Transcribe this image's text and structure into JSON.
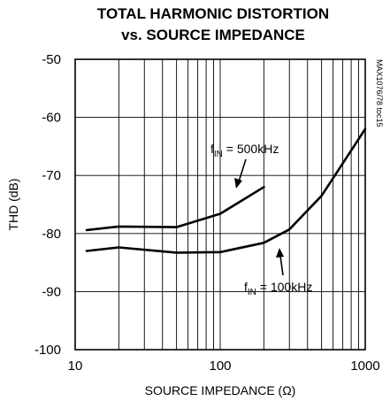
{
  "chart_data": {
    "type": "line",
    "title": "TOTAL HARMONIC DISTORTION",
    "subtitle": "vs. SOURCE IMPEDANCE",
    "xlabel": "SOURCE IMPEDANCE (Ω)",
    "ylabel": "THD (dB)",
    "xscale": "log",
    "xlim": [
      10,
      1000
    ],
    "ylim": [
      -100,
      -50
    ],
    "grid": true,
    "x_ticks": [
      {
        "value": 10,
        "label": "10"
      },
      {
        "value": 100,
        "label": "100"
      },
      {
        "value": 1000,
        "label": "1000"
      }
    ],
    "y_ticks": [
      {
        "value": -50,
        "label": "-50"
      },
      {
        "value": -60,
        "label": "-60"
      },
      {
        "value": -70,
        "label": "-70"
      },
      {
        "value": -80,
        "label": "-80"
      },
      {
        "value": -90,
        "label": "-90"
      },
      {
        "value": -100,
        "label": "-100"
      }
    ],
    "series": [
      {
        "name": "fIN = 500kHz",
        "x": [
          12,
          20,
          50,
          100,
          200
        ],
        "y": [
          -79.4,
          -78.8,
          -78.9,
          -76.6,
          -72.0
        ]
      },
      {
        "name": "fIN = 100kHz",
        "x": [
          12,
          20,
          50,
          100,
          200,
          300,
          500,
          1000
        ],
        "y": [
          -83.0,
          -82.4,
          -83.3,
          -83.2,
          -81.6,
          -79.3,
          -73.5,
          -62.0
        ]
      }
    ],
    "annotations": [
      {
        "series": "fIN = 500kHz",
        "prefix": "f",
        "sub": "IN",
        "rest": " = 500kHz"
      },
      {
        "series": "fIN = 100kHz",
        "prefix": "f",
        "sub": "IN",
        "rest": " = 100kHz"
      }
    ],
    "side_code": "MAX1076/78 toc15"
  }
}
